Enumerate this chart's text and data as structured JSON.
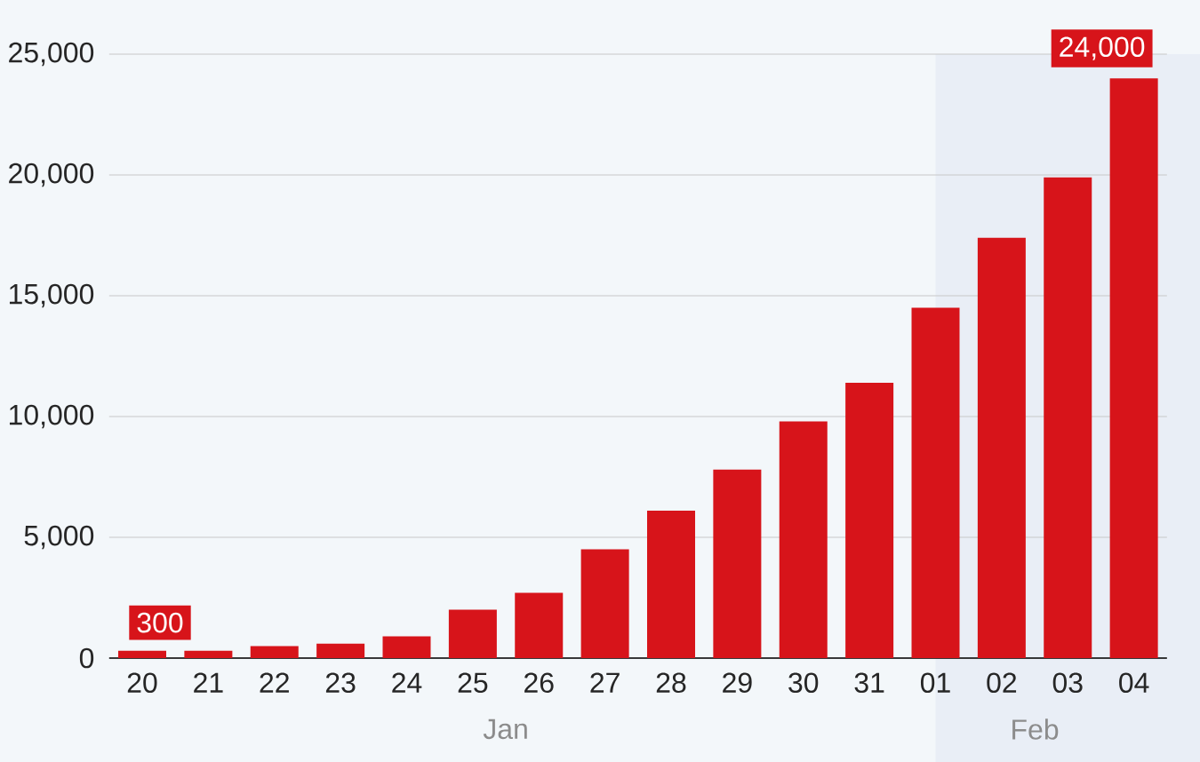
{
  "chart_data": {
    "type": "bar",
    "categories": [
      "20",
      "21",
      "22",
      "23",
      "24",
      "25",
      "26",
      "27",
      "28",
      "29",
      "30",
      "31",
      "01",
      "02",
      "03",
      "04"
    ],
    "values": [
      300,
      300,
      500,
      600,
      900,
      2000,
      2700,
      4500,
      6100,
      7800,
      9800,
      11400,
      14500,
      17400,
      19900,
      24000
    ],
    "value_labels": [
      "300",
      null,
      null,
      null,
      null,
      null,
      null,
      null,
      null,
      null,
      null,
      null,
      null,
      null,
      null,
      "24,000"
    ],
    "color": "#d7141a",
    "ylim": [
      0,
      25000
    ],
    "yticks": [
      {
        "value": 0,
        "label": "0"
      },
      {
        "value": 5000,
        "label": "5,000"
      },
      {
        "value": 10000,
        "label": "10,000"
      },
      {
        "value": 15000,
        "label": "15,000"
      },
      {
        "value": 20000,
        "label": "20,000"
      },
      {
        "value": 25000,
        "label": "25,000"
      }
    ],
    "grid": "y",
    "bands": [
      {
        "axis": "x",
        "from": "01",
        "to": "04",
        "color": "#e9eef6"
      }
    ],
    "annotations": [
      "Jan",
      "Feb"
    ]
  }
}
